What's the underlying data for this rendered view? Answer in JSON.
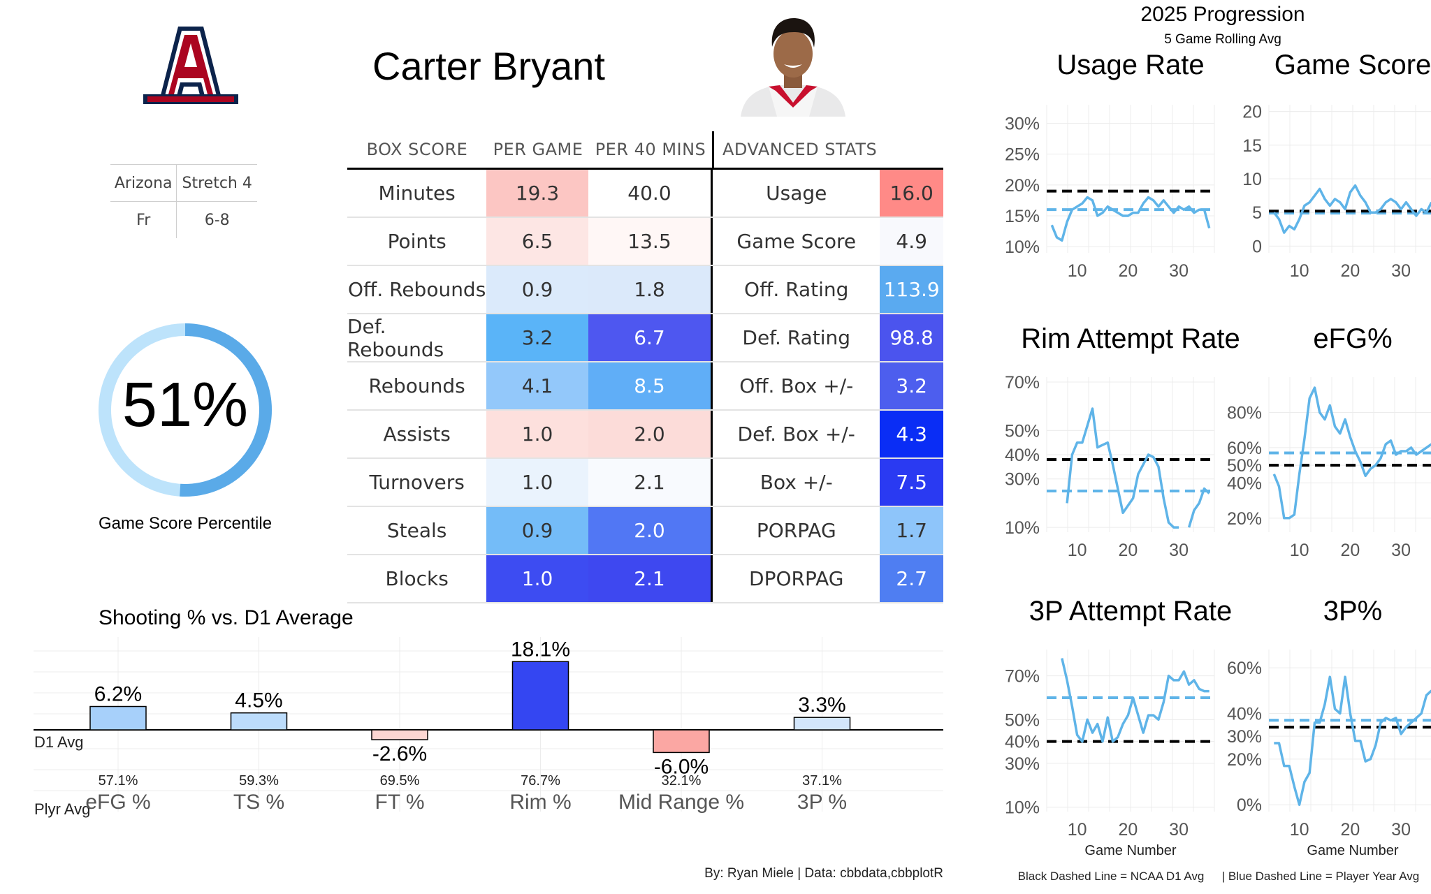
{
  "player": {
    "name": "Carter Bryant",
    "team": "Arizona",
    "role": "Stretch 4",
    "class": "Fr",
    "height": "6-8",
    "logo_letter": "A"
  },
  "percentile": {
    "value": "51%",
    "fraction": 0.51,
    "label": "Game Score Percentile",
    "colors": {
      "fill": "#5aaae8",
      "track": "#bde3fb"
    }
  },
  "table": {
    "headers": {
      "box": "BOX SCORE",
      "per_game": "PER GAME",
      "per40": "PER 40 MINS",
      "adv": "ADVANCED STATS"
    },
    "rows": [
      {
        "stat": "Minutes",
        "pg": "19.3",
        "p40": "40.0",
        "adv": "Usage",
        "adv_val": "16.0",
        "c_pg": "#fcc6c3",
        "c_p40": "#ffffff",
        "c_adv": "#ff8a87"
      },
      {
        "stat": "Points",
        "pg": "6.5",
        "p40": "13.5",
        "adv": "Game Score",
        "adv_val": "4.9",
        "c_pg": "#fde6e4",
        "c_p40": "#fff7f6",
        "c_adv": "#f8f9fd"
      },
      {
        "stat": "Off. Rebounds",
        "pg": "0.9",
        "p40": "1.8",
        "adv": "Off. Rating",
        "adv_val": "113.9",
        "c_pg": "#dbeafb",
        "c_p40": "#dbe9fa",
        "c_adv": "#5aaaf0"
      },
      {
        "stat": "Def. Rebounds",
        "pg": "3.2",
        "p40": "6.7",
        "adv": "Def. Rating",
        "adv_val": "98.8",
        "c_pg": "#5ab4f8",
        "c_p40": "#4e57f0",
        "c_adv": "#4b54ee"
      },
      {
        "stat": "Rebounds",
        "pg": "4.1",
        "p40": "8.5",
        "adv": "Off. Box +/-",
        "adv_val": "3.2",
        "c_pg": "#93c8fa",
        "c_p40": "#60aef7",
        "c_adv": "#4d5eee"
      },
      {
        "stat": "Assists",
        "pg": "1.0",
        "p40": "2.0",
        "adv": "Def. Box +/-",
        "adv_val": "4.3",
        "c_pg": "#fde0dd",
        "c_p40": "#fcdcd9",
        "c_adv": "#0a2df5"
      },
      {
        "stat": "Turnovers",
        "pg": "1.0",
        "p40": "2.1",
        "adv": "Box +/-",
        "adv_val": "7.5",
        "c_pg": "#eaf3fd",
        "c_p40": "#f8fafe",
        "c_adv": "#2a3af2"
      },
      {
        "stat": "Steals",
        "pg": "0.9",
        "p40": "2.0",
        "adv": "PORPAG",
        "adv_val": "1.7",
        "c_pg": "#74bcf8",
        "c_p40": "#5177f4",
        "c_adv": "#8ec5fa"
      },
      {
        "stat": "Blocks",
        "pg": "1.0",
        "p40": "2.1",
        "adv": "DPORPAG",
        "adv_val": "2.7",
        "c_pg": "#3d4cf2",
        "c_p40": "#3e48f0",
        "c_adv": "#4f7ef2"
      }
    ],
    "light_text_cells": [
      "6.7",
      "98.8",
      "3.2adv",
      "4.3",
      "7.5",
      "2.0st",
      "1.0bl",
      "2.1bl",
      "2.7",
      "113.9"
    ]
  },
  "chart_data": [
    {
      "type": "bar",
      "title": "Shooting % vs. D1 Average",
      "baseline_label": "D1 Avg",
      "row_label": "Plyr Avg",
      "categories": [
        "eFG %",
        "TS %",
        "FT %",
        "Rim %",
        "Mid Range %",
        "3P %"
      ],
      "values": [
        6.2,
        4.5,
        -2.6,
        18.1,
        -6.0,
        3.3
      ],
      "value_labels": [
        "6.2%",
        "4.5%",
        "-2.6%",
        "18.1%",
        "-6.0%",
        "3.3%"
      ],
      "player_avgs": [
        "57.1%",
        "59.3%",
        "69.5%",
        "76.7%",
        "32.1%",
        "37.1%"
      ],
      "colors": [
        "#a7d0fa",
        "#bcdcfb",
        "#fcd6d2",
        "#3446f2",
        "#fba7a3",
        "#d3e6fb"
      ]
    },
    {
      "type": "line",
      "title": "Usage Rate",
      "x_ticks": [
        10,
        20,
        30
      ],
      "y_ticks": [
        "10%",
        "15%",
        "20%",
        "25%",
        "30%"
      ],
      "ylim": [
        9,
        33
      ],
      "xlim": [
        4,
        37
      ],
      "d1_avg": 19,
      "player_avg": 16,
      "x": [
        5,
        6,
        7,
        8,
        9,
        10,
        11,
        12,
        13,
        14,
        15,
        16,
        17,
        18,
        19,
        20,
        21,
        22,
        23,
        24,
        25,
        26,
        27,
        28,
        29,
        30,
        31,
        32,
        33,
        34,
        35,
        36
      ],
      "values": [
        13.5,
        11.5,
        11,
        14,
        16,
        16.5,
        17,
        18,
        17.5,
        15,
        15.5,
        16.5,
        16,
        15.5,
        15,
        15,
        15.5,
        15.5,
        17,
        18,
        17.5,
        16.5,
        17.5,
        16.5,
        15.5,
        16.5,
        16,
        16.5,
        15.5,
        16,
        16,
        13
      ]
    },
    {
      "type": "line",
      "title": "Game Score",
      "x_ticks": [
        10,
        20,
        30
      ],
      "y_ticks": [
        "0",
        "5",
        "10",
        "15",
        "20"
      ],
      "ylim": [
        -1,
        21
      ],
      "xlim": [
        4,
        37
      ],
      "d1_avg": 5.2,
      "player_avg": 4.9,
      "x": [
        5,
        6,
        7,
        8,
        9,
        10,
        11,
        12,
        13,
        14,
        15,
        16,
        17,
        18,
        19,
        20,
        21,
        22,
        23,
        24,
        25,
        26,
        27,
        28,
        29,
        30,
        31,
        32,
        33,
        34,
        35,
        36
      ],
      "values": [
        5,
        4,
        2,
        3,
        2.5,
        4,
        6,
        6.5,
        7.5,
        8.5,
        7,
        6,
        7,
        6.5,
        5.5,
        8,
        9,
        7.5,
        6.5,
        5,
        5,
        5.5,
        6.5,
        7,
        6.5,
        5.5,
        6.5,
        5.5,
        4.5,
        5.5,
        5,
        6.5
      ]
    },
    {
      "type": "line",
      "title": "Rim Attempt Rate",
      "x_ticks": [
        10,
        20,
        30
      ],
      "y_ticks": [
        "10%",
        "30%",
        "40%",
        "50%",
        "70%"
      ],
      "ylim": [
        8,
        72
      ],
      "xlim": [
        4,
        37
      ],
      "d1_avg": 38,
      "player_avg": 25,
      "x": [
        8,
        9,
        10,
        11,
        12,
        13,
        14,
        15,
        16,
        17,
        18,
        19,
        20,
        21,
        22,
        23,
        24,
        25,
        26,
        27,
        28,
        29,
        30,
        31,
        32,
        33,
        34,
        35,
        36
      ],
      "values": [
        20,
        40,
        45,
        45,
        52,
        59,
        43,
        44,
        45,
        36,
        26,
        16,
        19,
        22,
        32,
        36,
        40,
        39,
        35,
        22,
        12,
        10,
        10,
        null,
        10,
        17,
        20,
        26,
        24
      ]
    },
    {
      "type": "line",
      "title": "eFG%",
      "x_ticks": [
        10,
        20,
        30
      ],
      "y_ticks": [
        "20%",
        "40%",
        "50%",
        "60%",
        "80%"
      ],
      "ylim": [
        12,
        100
      ],
      "xlim": [
        4,
        37
      ],
      "d1_avg": 50,
      "player_avg": 57,
      "x": [
        5,
        6,
        7,
        8,
        9,
        10,
        11,
        12,
        13,
        14,
        15,
        16,
        17,
        18,
        19,
        20,
        21,
        22,
        23,
        24,
        25,
        26,
        27,
        28,
        29,
        30,
        31,
        32,
        33,
        34,
        35,
        36
      ],
      "values": [
        45,
        38,
        20,
        20,
        22,
        45,
        65,
        88,
        94,
        80,
        76,
        84,
        72,
        68,
        76,
        66,
        58,
        52,
        44,
        48,
        50,
        54,
        62,
        64,
        56,
        58,
        58,
        60,
        56,
        58,
        60,
        62
      ]
    },
    {
      "type": "line",
      "title": "3P Attempt Rate",
      "x_ticks": [
        10,
        20,
        30
      ],
      "y_ticks": [
        "10%",
        "30%",
        "40%",
        "50%",
        "70%"
      ],
      "ylim": [
        8,
        82
      ],
      "xlim": [
        4,
        37
      ],
      "d1_avg": 40,
      "player_avg": 60,
      "x": [
        7,
        8,
        9,
        10,
        11,
        12,
        13,
        14,
        15,
        16,
        17,
        18,
        19,
        20,
        21,
        22,
        23,
        24,
        25,
        26,
        27,
        28,
        29,
        30,
        31,
        32,
        33,
        34,
        35,
        36
      ],
      "values": [
        78,
        68,
        56,
        43,
        40,
        50,
        44,
        48,
        40,
        51,
        40,
        42,
        48,
        52,
        60,
        52,
        44,
        52,
        52,
        50,
        58,
        70,
        68,
        68,
        72,
        66,
        68,
        64,
        63,
        63
      ]
    },
    {
      "type": "line",
      "title": "3P%",
      "x_ticks": [
        10,
        20,
        30
      ],
      "y_ticks": [
        "0%",
        "20%",
        "30%",
        "40%",
        "60%"
      ],
      "ylim": [
        -3,
        68
      ],
      "xlim": [
        4,
        37
      ],
      "d1_avg": 34,
      "player_avg": 37,
      "x": [
        5,
        6,
        7,
        8,
        9,
        10,
        11,
        12,
        13,
        14,
        15,
        16,
        17,
        18,
        19,
        20,
        21,
        22,
        23,
        24,
        25,
        26,
        27,
        28,
        29,
        30,
        31,
        32,
        33,
        34,
        35,
        36
      ],
      "values": [
        27,
        27,
        17,
        17,
        8,
        0,
        10,
        14,
        36,
        36,
        44,
        56,
        42,
        40,
        56,
        40,
        28,
        28,
        19,
        20,
        26,
        36,
        38,
        37,
        38,
        31,
        34,
        36,
        38,
        40,
        48,
        50
      ]
    }
  ],
  "progression": {
    "title": "2025 Progression",
    "subtitle": "5 Game Rolling Avg",
    "x_label": "Game Number",
    "note_left": "Black Dashed Line = NCAA D1 Avg",
    "note_right": "| Blue Dashed Line = Player Year Avg",
    "colors": {
      "line": "#5fb4e8",
      "d1": "#000000",
      "player": "#5fb4e8"
    }
  },
  "credit": "By: Ryan Miele | Data: cbbdata,cbbplotR"
}
